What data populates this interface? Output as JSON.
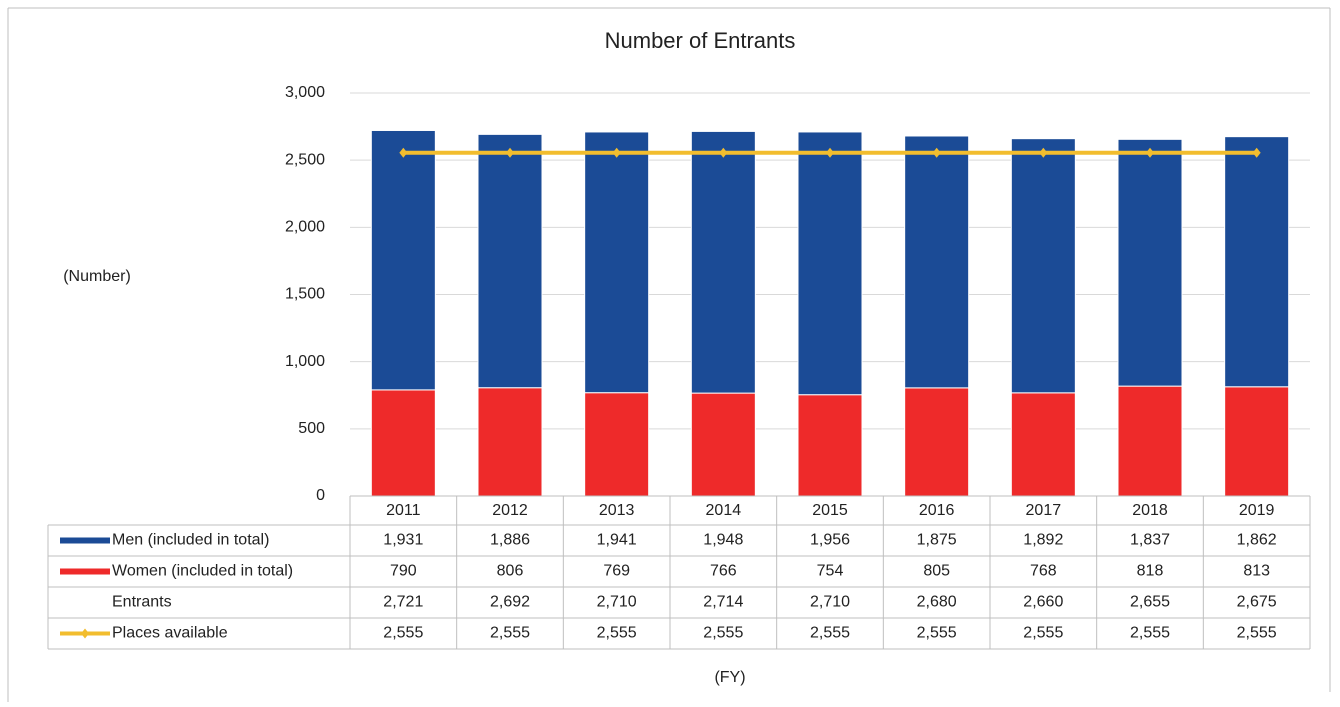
{
  "chart_data": {
    "type": "bar",
    "title": "Number of Entrants",
    "y_label": "(Number)",
    "x_label": "(FY)",
    "categories": [
      "2011",
      "2012",
      "2013",
      "2014",
      "2015",
      "2016",
      "2017",
      "2018",
      "2019"
    ],
    "series": [
      {
        "name": "Men (included in total)",
        "color": "#1b4b96",
        "values": [
          1931,
          1886,
          1941,
          1948,
          1956,
          1875,
          1892,
          1837,
          1862
        ],
        "value_labels": [
          "1,931",
          "1,886",
          "1,941",
          "1,948",
          "1,956",
          "1,875",
          "1,892",
          "1,837",
          "1,862"
        ]
      },
      {
        "name": "Women (included in total)",
        "color": "#ee2a2a",
        "values": [
          790,
          806,
          769,
          766,
          754,
          805,
          768,
          818,
          813
        ]
      },
      {
        "name": "Entrants",
        "values": [
          2721,
          2692,
          2710,
          2714,
          2710,
          2680,
          2660,
          2655,
          2675
        ],
        "value_labels": [
          "2,721",
          "2,692",
          "2,710",
          "2,714",
          "2,710",
          "2,680",
          "2,660",
          "2,655",
          "2,675"
        ]
      },
      {
        "name": "Places available",
        "type": "line",
        "color": "#f2bd2e",
        "values": [
          2555,
          2555,
          2555,
          2555,
          2555,
          2555,
          2555,
          2555,
          2555
        ],
        "value_labels": [
          "2,555",
          "2,555",
          "2,555",
          "2,555",
          "2,555",
          "2,555",
          "2,555",
          "2,555",
          "2,555"
        ]
      }
    ],
    "stack_order": [
      "Women (included in total)",
      "Men (included in total)"
    ],
    "ylim": [
      0,
      3000
    ],
    "yticks": [
      0,
      500,
      {
        "value": 1000,
        "label": "1,000"
      },
      {
        "value": 1500,
        "label": "1,500"
      },
      {
        "value": 2000,
        "label": "2,000"
      },
      {
        "value": 2500,
        "label": "2,500"
      },
      {
        "value": 3000,
        "label": "3,000"
      }
    ],
    "grid": true
  }
}
